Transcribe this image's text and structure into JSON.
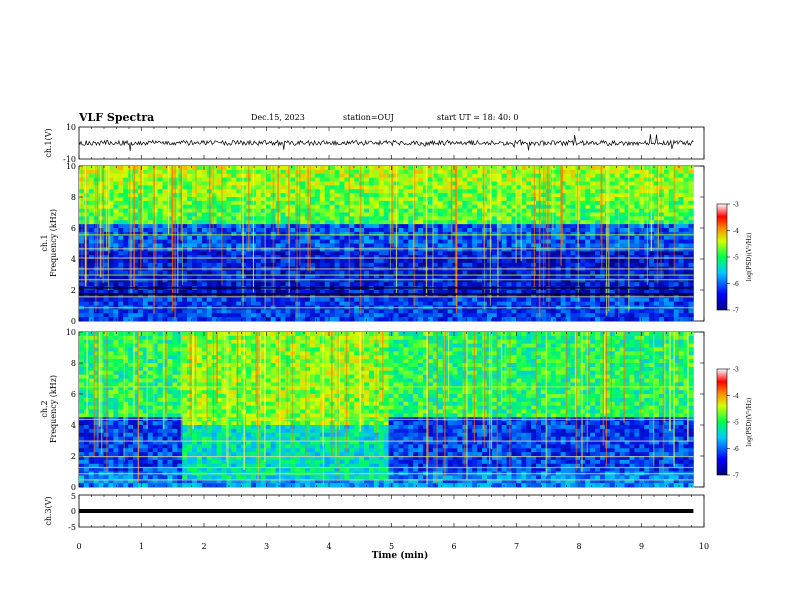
{
  "header": {
    "title": "VLF Spectra",
    "date": "Dec.15, 2023",
    "station": "station=OUJ",
    "start": "start  UT  =   18: 40: 0"
  },
  "chart_data": [
    {
      "type": "line",
      "panel": "ch1-waveform",
      "ylabel": "ch.1(V)",
      "ylim": [
        -10,
        10
      ],
      "ytick_labels": [
        "10",
        "-10"
      ],
      "xlim": [
        0,
        10
      ]
    },
    {
      "type": "heatmap",
      "panel": "ch1-spectrogram",
      "ylabel_line1": "ch.1",
      "ylabel_line2": "Frequency (kHz)",
      "ylim": [
        0,
        10
      ],
      "ytick_labels": [
        "0",
        "2",
        "4",
        "6",
        "8",
        "10"
      ],
      "xlim": [
        0,
        10
      ],
      "data_extent_min": 9.83,
      "colorbar": {
        "label": "log(PSD)(V²/Hz)",
        "range": [
          -7,
          -3
        ],
        "tick_labels": [
          "-3",
          "-4",
          "-5",
          "-6",
          "-7"
        ]
      }
    },
    {
      "type": "heatmap",
      "panel": "ch2-spectrogram",
      "ylabel_line1": "ch.2",
      "ylabel_line2": "Frequency (kHz)",
      "ylim": [
        0,
        10
      ],
      "ytick_labels": [
        "0",
        "2",
        "4",
        "6",
        "8",
        "10"
      ],
      "xlim": [
        0,
        10
      ],
      "data_extent_min": 9.83,
      "colorbar": {
        "label": "log(PSD)(V²/Hz)",
        "range": [
          -7,
          -3
        ],
        "tick_labels": [
          "-3",
          "-4",
          "-5",
          "-6",
          "-7"
        ]
      }
    },
    {
      "type": "line",
      "panel": "ch3-waveform",
      "ylabel": "ch.3(V)",
      "ylim": [
        -5,
        5
      ],
      "ytick_labels": [
        "5",
        "0",
        "-5"
      ],
      "xlim": [
        0,
        10
      ],
      "xlabel": "Time  (min)",
      "xtick_labels": [
        "0",
        "1",
        "2",
        "3",
        "4",
        "5",
        "6",
        "7",
        "8",
        "9",
        "10"
      ]
    }
  ]
}
